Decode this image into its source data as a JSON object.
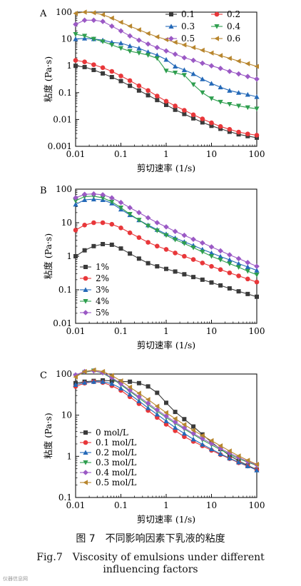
{
  "chart_data": [
    {
      "type": "line",
      "panel_label": "A",
      "xlabel": "剪切速率 (1/s)",
      "ylabel": "粘度 (Pa·s)",
      "xscale": "log",
      "yscale": "log",
      "xlim": [
        0.01,
        100
      ],
      "ylim": [
        0.001,
        100
      ],
      "xticks": [
        "0.01",
        "0.1",
        "1",
        "10",
        "100"
      ],
      "yticks": [
        "0.001",
        "0.01",
        "0.1",
        "1",
        "10",
        "100"
      ],
      "legend_position": "top-right",
      "x": [
        0.01,
        0.0158,
        0.0251,
        0.0398,
        0.0631,
        0.1,
        0.158,
        0.251,
        0.398,
        0.631,
        1,
        1.58,
        2.51,
        3.98,
        6.31,
        10,
        15.8,
        25.1,
        39.8,
        63.1,
        100
      ],
      "series": [
        {
          "name": "0.1",
          "color": "#3a3a3a",
          "marker": "square",
          "values": [
            1.0,
            0.9,
            0.7,
            0.52,
            0.38,
            0.27,
            0.18,
            0.12,
            0.08,
            0.053,
            0.035,
            0.023,
            0.016,
            0.011,
            0.0078,
            0.0058,
            0.0045,
            0.0035,
            0.0028,
            0.0024,
            0.0021
          ]
        },
        {
          "name": "0.2",
          "color": "#e8373a",
          "marker": "circle",
          "values": [
            1.6,
            1.4,
            1.1,
            0.85,
            0.62,
            0.42,
            0.28,
            0.18,
            0.12,
            0.075,
            0.048,
            0.032,
            0.022,
            0.015,
            0.0105,
            0.0075,
            0.0055,
            0.0043,
            0.0034,
            0.0029,
            0.0026
          ]
        },
        {
          "name": "0.3",
          "color": "#2469b8",
          "marker": "triangle-up",
          "values": [
            10.0,
            10.5,
            10.0,
            9.0,
            7.5,
            7.0,
            5.5,
            4.5,
            3.3,
            2.5,
            1.7,
            0.95,
            0.7,
            0.5,
            0.32,
            0.22,
            0.16,
            0.12,
            0.1,
            0.085,
            0.07
          ]
        },
        {
          "name": "0.4",
          "color": "#2e9e4e",
          "marker": "triangle-down",
          "values": [
            15.0,
            13.0,
            10.0,
            8.0,
            6.0,
            4.5,
            3.5,
            3.0,
            2.5,
            1.9,
            0.65,
            0.55,
            0.45,
            0.2,
            0.1,
            0.06,
            0.045,
            0.037,
            0.032,
            0.028,
            0.025
          ]
        },
        {
          "name": "0.5",
          "color": "#9b59c5",
          "marker": "diamond",
          "values": [
            35.0,
            50.0,
            50.0,
            45.0,
            30.0,
            20.0,
            13.0,
            9.0,
            6.5,
            4.8,
            3.6,
            2.7,
            2.0,
            1.6,
            1.25,
            1.0,
            0.8,
            0.62,
            0.5,
            0.4,
            0.32
          ]
        },
        {
          "name": "0.6",
          "color": "#b8862e",
          "marker": "triangle-left",
          "values": [
            90.0,
            100.0,
            95.0,
            80.0,
            60.0,
            42.0,
            30.0,
            22.0,
            16.0,
            12.0,
            9.5,
            7.5,
            6.0,
            4.8,
            3.8,
            3.0,
            2.4,
            1.9,
            1.5,
            1.2,
            0.95
          ]
        }
      ]
    },
    {
      "type": "line",
      "panel_label": "B",
      "xlabel": "剪切速率 (1/s)",
      "ylabel": "粘度 (Pa·s)",
      "xscale": "log",
      "yscale": "log",
      "xlim": [
        0.01,
        100
      ],
      "ylim": [
        0.01,
        100
      ],
      "xticks": [
        "0.01",
        "0.1",
        "1",
        "10",
        "100"
      ],
      "yticks": [
        "0.01",
        "0.1",
        "1",
        "10",
        "100"
      ],
      "legend_position": "bottom-left",
      "x": [
        0.01,
        0.0158,
        0.0251,
        0.0398,
        0.0631,
        0.1,
        0.158,
        0.251,
        0.398,
        0.631,
        1,
        1.58,
        2.51,
        3.98,
        6.31,
        10,
        15.8,
        25.1,
        39.8,
        63.1,
        100
      ],
      "series": [
        {
          "name": "1%",
          "color": "#3a3a3a",
          "marker": "square",
          "values": [
            1.0,
            1.5,
            2.0,
            2.3,
            2.2,
            1.7,
            1.2,
            0.85,
            0.62,
            0.5,
            0.42,
            0.35,
            0.29,
            0.24,
            0.2,
            0.165,
            0.135,
            0.11,
            0.09,
            0.075,
            0.062
          ]
        },
        {
          "name": "2%",
          "color": "#e8373a",
          "marker": "circle",
          "values": [
            6.0,
            8.5,
            10.0,
            10.0,
            9.0,
            7.0,
            5.0,
            3.6,
            2.6,
            2.0,
            1.6,
            1.25,
            1.0,
            0.8,
            0.63,
            0.5,
            0.4,
            0.32,
            0.26,
            0.21,
            0.17
          ]
        },
        {
          "name": "3%",
          "color": "#2469b8",
          "marker": "triangle-up",
          "values": [
            35.0,
            48.0,
            50.0,
            48.0,
            38.0,
            25.0,
            17.0,
            12.0,
            8.5,
            6.2,
            4.6,
            3.5,
            2.7,
            2.1,
            1.6,
            1.25,
            0.98,
            0.78,
            0.6,
            0.48,
            0.38
          ]
        },
        {
          "name": "4%",
          "color": "#2e9e4e",
          "marker": "triangle-down",
          "values": [
            45.0,
            60.0,
            62.0,
            55.0,
            42.0,
            28.0,
            18.0,
            12.0,
            8.0,
            5.8,
            4.2,
            3.1,
            2.4,
            1.8,
            1.35,
            1.0,
            0.78,
            0.6,
            0.47,
            0.36,
            0.28
          ]
        },
        {
          "name": "5%",
          "color": "#9b59c5",
          "marker": "diamond",
          "values": [
            55.0,
            70.0,
            72.0,
            68.0,
            55.0,
            40.0,
            28.0,
            20.0,
            14.0,
            10.0,
            7.5,
            5.5,
            4.2,
            3.2,
            2.5,
            1.9,
            1.45,
            1.1,
            0.85,
            0.65,
            0.5
          ]
        }
      ]
    },
    {
      "type": "line",
      "panel_label": "C",
      "xlabel": "剪切速率 (1/s)",
      "ylabel": "粘度 (Pa·s)",
      "xscale": "log",
      "yscale": "log",
      "xlim": [
        0.01,
        100
      ],
      "ylim": [
        0.1,
        100
      ],
      "xticks": [
        "0.01",
        "0.1",
        "1",
        "10",
        "100"
      ],
      "yticks": [
        "0.1",
        "1",
        "10",
        "100"
      ],
      "legend_position": "bottom-left",
      "x": [
        0.01,
        0.0158,
        0.0251,
        0.0398,
        0.0631,
        0.1,
        0.158,
        0.251,
        0.398,
        0.631,
        1,
        1.58,
        2.51,
        3.98,
        6.31,
        10,
        15.8,
        25.1,
        39.8,
        63.1,
        100
      ],
      "series": [
        {
          "name": "0 mol/L",
          "color": "#3a3a3a",
          "marker": "square",
          "values": [
            60.0,
            65.0,
            68.0,
            70.0,
            68.0,
            66.0,
            65.0,
            60.0,
            50.0,
            35.0,
            20.0,
            12.0,
            8.0,
            5.3,
            3.4,
            2.2,
            1.5,
            1.05,
            0.78,
            0.6,
            0.48
          ]
        },
        {
          "name": "0.1 mol/L",
          "color": "#e8373a",
          "marker": "circle",
          "values": [
            50.0,
            60.0,
            65.0,
            62.0,
            52.0,
            40.0,
            28.0,
            19.0,
            13.0,
            8.8,
            6.0,
            4.2,
            3.0,
            2.3,
            1.8,
            1.4,
            1.1,
            0.88,
            0.7,
            0.58,
            0.47
          ]
        },
        {
          "name": "0.2 mol/L",
          "color": "#2469b8",
          "marker": "triangle-up",
          "values": [
            55.0,
            62.0,
            65.0,
            65.0,
            58.0,
            45.0,
            32.0,
            22.0,
            15.0,
            10.5,
            7.2,
            5.0,
            3.6,
            2.6,
            1.95,
            1.5,
            1.15,
            0.9,
            0.72,
            0.58,
            0.46
          ]
        },
        {
          "name": "0.3 mol/L",
          "color": "#2e9e4e",
          "marker": "triangle-down",
          "values": [
            90.0,
            110.0,
            120.0,
            105.0,
            78.0,
            55.0,
            38.0,
            26.0,
            18.0,
            12.5,
            8.8,
            6.3,
            4.6,
            3.4,
            2.5,
            1.9,
            1.45,
            1.12,
            0.88,
            0.72,
            0.6
          ]
        },
        {
          "name": "0.4 mol/L",
          "color": "#9b59c5",
          "marker": "diamond",
          "values": [
            95.0,
            115.0,
            120.0,
            108.0,
            82.0,
            58.0,
            40.0,
            28.0,
            19.5,
            13.5,
            9.5,
            6.8,
            4.9,
            3.6,
            2.7,
            2.05,
            1.55,
            1.2,
            0.94,
            0.75,
            0.62
          ]
        },
        {
          "name": "0.5 mol/L",
          "color": "#b8862e",
          "marker": "triangle-left",
          "values": [
            85.0,
            115.0,
            125.0,
            115.0,
            92.0,
            68.0,
            48.0,
            34.0,
            24.0,
            16.5,
            11.5,
            8.2,
            5.9,
            4.3,
            3.2,
            2.4,
            1.8,
            1.35,
            1.02,
            0.8,
            0.64
          ]
        }
      ]
    }
  ],
  "caption": {
    "cn": "图 7　不同影响因素下乳液的粘度",
    "en_line1": "Fig.7　Viscosity of emulsions under different",
    "en_line2": "influencing factors"
  },
  "watermark": "仪器信息网"
}
